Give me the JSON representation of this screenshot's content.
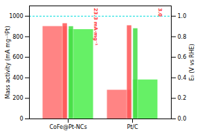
{
  "chart_data": {
    "type": "bar",
    "categories": [
      "CoFe@Pt-NCs",
      "Pt/C"
    ],
    "series": [
      {
        "color": "#ff7777",
        "values": [
          900,
          280
        ]
      },
      {
        "color": "#55ee55",
        "values": [
          870,
          380
        ]
      },
      {
        "color": "#ff5555",
        "values": [
          0.93,
          0.91
        ],
        "axis": "y2"
      },
      {
        "color": "#44dd44",
        "values": [
          0.9,
          0.88
        ],
        "axis": "y2"
      }
    ],
    "ylabel": "Mass activity (mA mg⁻¹Pt)",
    "y2label": "E₀ (V vs RHE)",
    "ylim": [
      0,
      1100
    ],
    "yticks": [
      0,
      200,
      400,
      600,
      800,
      1000
    ],
    "y2lim": [
      0.0,
      1.1
    ],
    "y2ticks": [
      {
        "value": 0,
        "label": "0.0"
      },
      0.2,
      0.4,
      0.6,
      0.8,
      {
        "value": 1,
        "label": "1.0"
      }
    ],
    "reference_line": {
      "value": 1000,
      "color": "#00dddd"
    },
    "annotations": [
      {
        "text": "23.3 mA·mg⁻¹",
        "category": "CoFe@Pt-NCs",
        "color": "#ff3333"
      },
      {
        "text": "3.0",
        "category": "Pt/C",
        "color": "#ff3333"
      }
    ],
    "grid": false
  }
}
